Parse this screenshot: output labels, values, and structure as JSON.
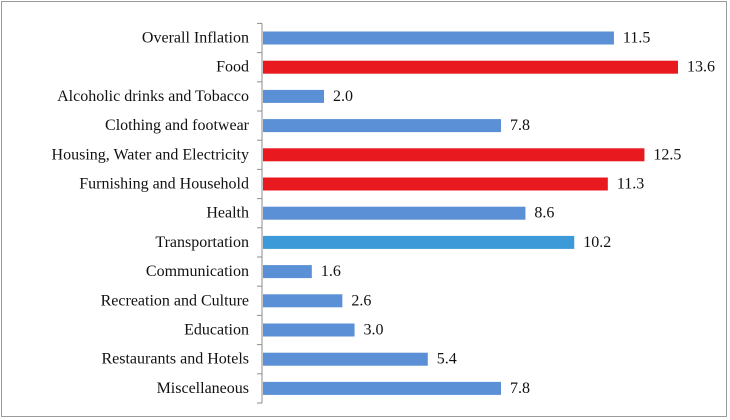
{
  "chart_data": {
    "type": "bar",
    "orientation": "horizontal",
    "categories": [
      "Overall Inflation",
      "Food",
      "Alcoholic drinks and Tobacco",
      "Clothing and footwear",
      "Housing, Water and Electricity",
      "Furnishing and Household",
      "Health",
      "Transportation",
      "Communication",
      "Recreation and Culture",
      "Education",
      "Restaurants and Hotels",
      "Miscellaneous"
    ],
    "values": [
      11.5,
      13.6,
      2.0,
      7.8,
      12.5,
      11.3,
      8.6,
      10.2,
      1.6,
      2.6,
      3.0,
      5.4,
      7.8
    ],
    "value_labels": [
      "11.5",
      "13.6",
      "2.0",
      "7.8",
      "12.5",
      "11.3",
      "8.6",
      "10.2",
      "1.6",
      "2.6",
      "3.0",
      "5.4",
      "7.8"
    ],
    "colors": [
      "#5b8fd6",
      "#e8191f",
      "#5b8fd6",
      "#5b8fd6",
      "#e8191f",
      "#e8191f",
      "#5b8fd6",
      "#3d9ad9",
      "#5b8fd6",
      "#5b8fd6",
      "#5b8fd6",
      "#5b8fd6",
      "#5b8fd6"
    ],
    "title": "",
    "xlabel": "",
    "ylabel": "",
    "xlim": [
      0,
      13.6
    ],
    "grid": false,
    "legend": "none"
  }
}
